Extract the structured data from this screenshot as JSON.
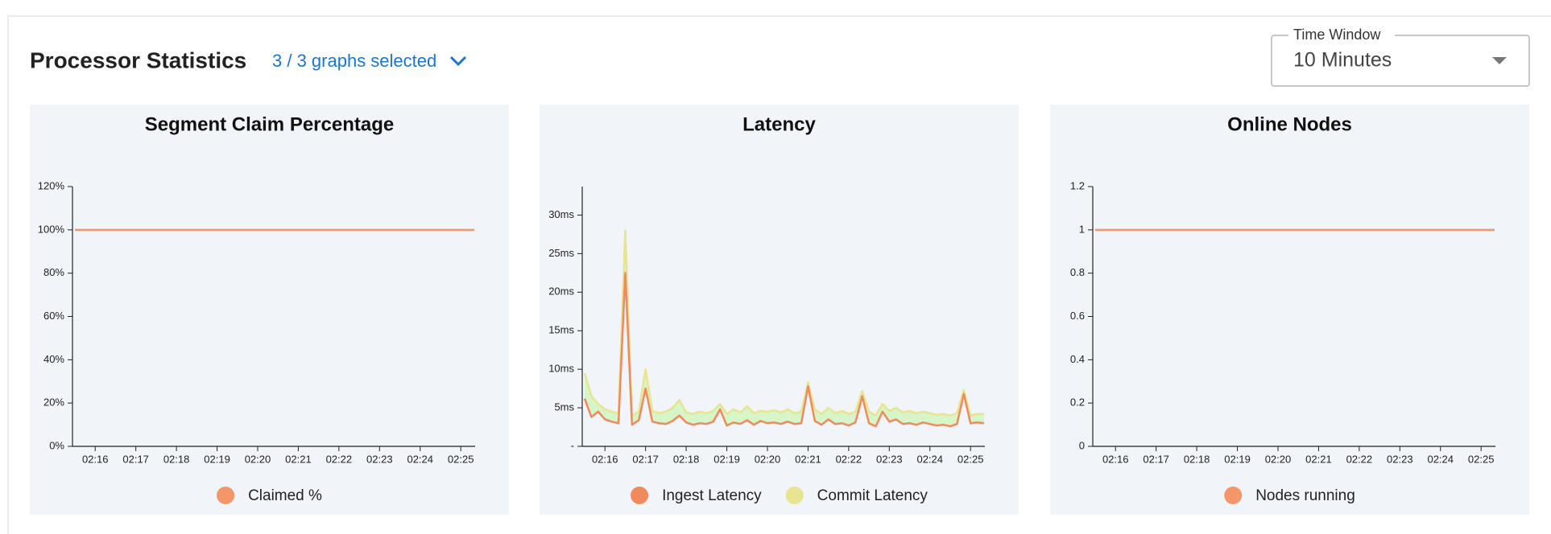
{
  "header": {
    "title": "Processor Statistics",
    "selection": "3 / 3 graphs selected"
  },
  "time_window": {
    "label": "Time Window",
    "value": "10 Minutes"
  },
  "chart_data": [
    {
      "type": "line",
      "title": "Segment Claim Percentage",
      "categories": [
        null,
        null,
        null,
        "02:16",
        null,
        null,
        null,
        null,
        null,
        "02:17",
        null,
        null,
        null,
        null,
        null,
        "02:18",
        null,
        null,
        null,
        null,
        null,
        "02:19",
        null,
        null,
        null,
        null,
        null,
        "02:20",
        null,
        null,
        null,
        null,
        null,
        "02:21",
        null,
        null,
        null,
        null,
        null,
        "02:22",
        null,
        null,
        null,
        null,
        null,
        "02:23",
        null,
        null,
        null,
        null,
        null,
        "02:24",
        null,
        null,
        null,
        null,
        null,
        "02:25",
        null,
        null
      ],
      "ylim": [
        0,
        120
      ],
      "yticks": [
        {
          "value": 0,
          "label": "0%"
        },
        {
          "value": 20,
          "label": "20%"
        },
        {
          "value": 40,
          "label": "40%"
        },
        {
          "value": 60,
          "label": "60%"
        },
        {
          "value": 80,
          "label": "80%"
        },
        {
          "value": 100,
          "label": "100%"
        },
        {
          "value": 120,
          "label": "120%"
        }
      ],
      "series": [
        {
          "name": "Claimed %",
          "color": "#f4956a",
          "values": [
            100,
            100,
            100,
            100,
            100,
            100,
            100,
            100,
            100,
            100,
            100,
            100,
            100,
            100,
            100,
            100,
            100,
            100,
            100,
            100,
            100,
            100,
            100,
            100,
            100,
            100,
            100,
            100,
            100,
            100,
            100,
            100,
            100,
            100,
            100,
            100,
            100,
            100,
            100,
            100,
            100,
            100,
            100,
            100,
            100,
            100,
            100,
            100,
            100,
            100,
            100,
            100,
            100,
            100,
            100,
            100,
            100,
            100,
            100,
            100
          ]
        }
      ]
    },
    {
      "type": "line",
      "title": "Latency",
      "categories": [
        null,
        null,
        null,
        "02:16",
        null,
        null,
        null,
        null,
        null,
        "02:17",
        null,
        null,
        null,
        null,
        null,
        "02:18",
        null,
        null,
        null,
        null,
        null,
        "02:19",
        null,
        null,
        null,
        null,
        null,
        "02:20",
        null,
        null,
        null,
        null,
        null,
        "02:21",
        null,
        null,
        null,
        null,
        null,
        "02:22",
        null,
        null,
        null,
        null,
        null,
        "02:23",
        null,
        null,
        null,
        null,
        null,
        "02:24",
        null,
        null,
        null,
        null,
        null,
        "02:25",
        null,
        null
      ],
      "ylim": [
        0,
        33.7
      ],
      "yticks": [
        {
          "value": 0,
          "label": "-"
        },
        {
          "value": 5,
          "label": "5ms"
        },
        {
          "value": 10,
          "label": "10ms"
        },
        {
          "value": 15,
          "label": "15ms"
        },
        {
          "value": 20,
          "label": "20ms"
        },
        {
          "value": 25,
          "label": "25ms"
        },
        {
          "value": 30,
          "label": "30ms"
        }
      ],
      "series": [
        {
          "name": "Ingest Latency",
          "color": "#f08a5d",
          "values": [
            6.2,
            3.8,
            4.5,
            3.5,
            3.2,
            3.0,
            22.5,
            2.8,
            3.4,
            7.5,
            3.2,
            3.0,
            2.9,
            3.3,
            4.0,
            3.1,
            2.8,
            3.0,
            2.9,
            3.2,
            4.8,
            2.7,
            3.1,
            2.9,
            3.4,
            2.8,
            3.3,
            3.0,
            3.1,
            2.9,
            3.2,
            2.9,
            3.0,
            7.8,
            3.3,
            2.8,
            3.5,
            2.9,
            3.0,
            2.7,
            3.1,
            6.5,
            3.0,
            2.6,
            4.5,
            3.2,
            3.5,
            2.9,
            3.0,
            2.8,
            3.1,
            2.9,
            2.7,
            2.8,
            2.6,
            2.9,
            6.8,
            3.0,
            3.1,
            3.0
          ]
        },
        {
          "name": "Commit Latency",
          "color": "#e8e48f",
          "fill": "#d6f5c8",
          "values": [
            9.5,
            6.5,
            5.5,
            4.8,
            4.5,
            4.3,
            28,
            4.0,
            4.5,
            10,
            4.6,
            4.3,
            4.5,
            5.0,
            6.0,
            4.4,
            4.2,
            4.5,
            4.3,
            4.6,
            5.5,
            4.2,
            4.8,
            4.4,
            5.2,
            4.3,
            4.6,
            4.5,
            4.7,
            4.4,
            4.8,
            4.3,
            4.5,
            8.3,
            4.8,
            4.2,
            5.0,
            4.3,
            4.6,
            4.2,
            4.5,
            7.2,
            4.5,
            4.0,
            5.5,
            4.6,
            5.0,
            4.4,
            4.6,
            4.3,
            4.5,
            4.3,
            4.1,
            4.2,
            4.0,
            4.3,
            7.3,
            4.0,
            4.2,
            4.2
          ]
        }
      ]
    },
    {
      "type": "line",
      "title": "Online Nodes",
      "categories": [
        null,
        null,
        null,
        "02:16",
        null,
        null,
        null,
        null,
        null,
        "02:17",
        null,
        null,
        null,
        null,
        null,
        "02:18",
        null,
        null,
        null,
        null,
        null,
        "02:19",
        null,
        null,
        null,
        null,
        null,
        "02:20",
        null,
        null,
        null,
        null,
        null,
        "02:21",
        null,
        null,
        null,
        null,
        null,
        "02:22",
        null,
        null,
        null,
        null,
        null,
        "02:23",
        null,
        null,
        null,
        null,
        null,
        "02:24",
        null,
        null,
        null,
        null,
        null,
        "02:25",
        null,
        null
      ],
      "ylim": [
        0,
        1.2
      ],
      "yticks": [
        0,
        0.2,
        0.4,
        0.6,
        0.8,
        1,
        1.2
      ],
      "series": [
        {
          "name": "Nodes running",
          "color": "#f4956a",
          "values": [
            1,
            1,
            1,
            1,
            1,
            1,
            1,
            1,
            1,
            1,
            1,
            1,
            1,
            1,
            1,
            1,
            1,
            1,
            1,
            1,
            1,
            1,
            1,
            1,
            1,
            1,
            1,
            1,
            1,
            1,
            1,
            1,
            1,
            1,
            1,
            1,
            1,
            1,
            1,
            1,
            1,
            1,
            1,
            1,
            1,
            1,
            1,
            1,
            1,
            1,
            1,
            1,
            1,
            1,
            1,
            1,
            1,
            1,
            1,
            1
          ]
        }
      ]
    }
  ]
}
